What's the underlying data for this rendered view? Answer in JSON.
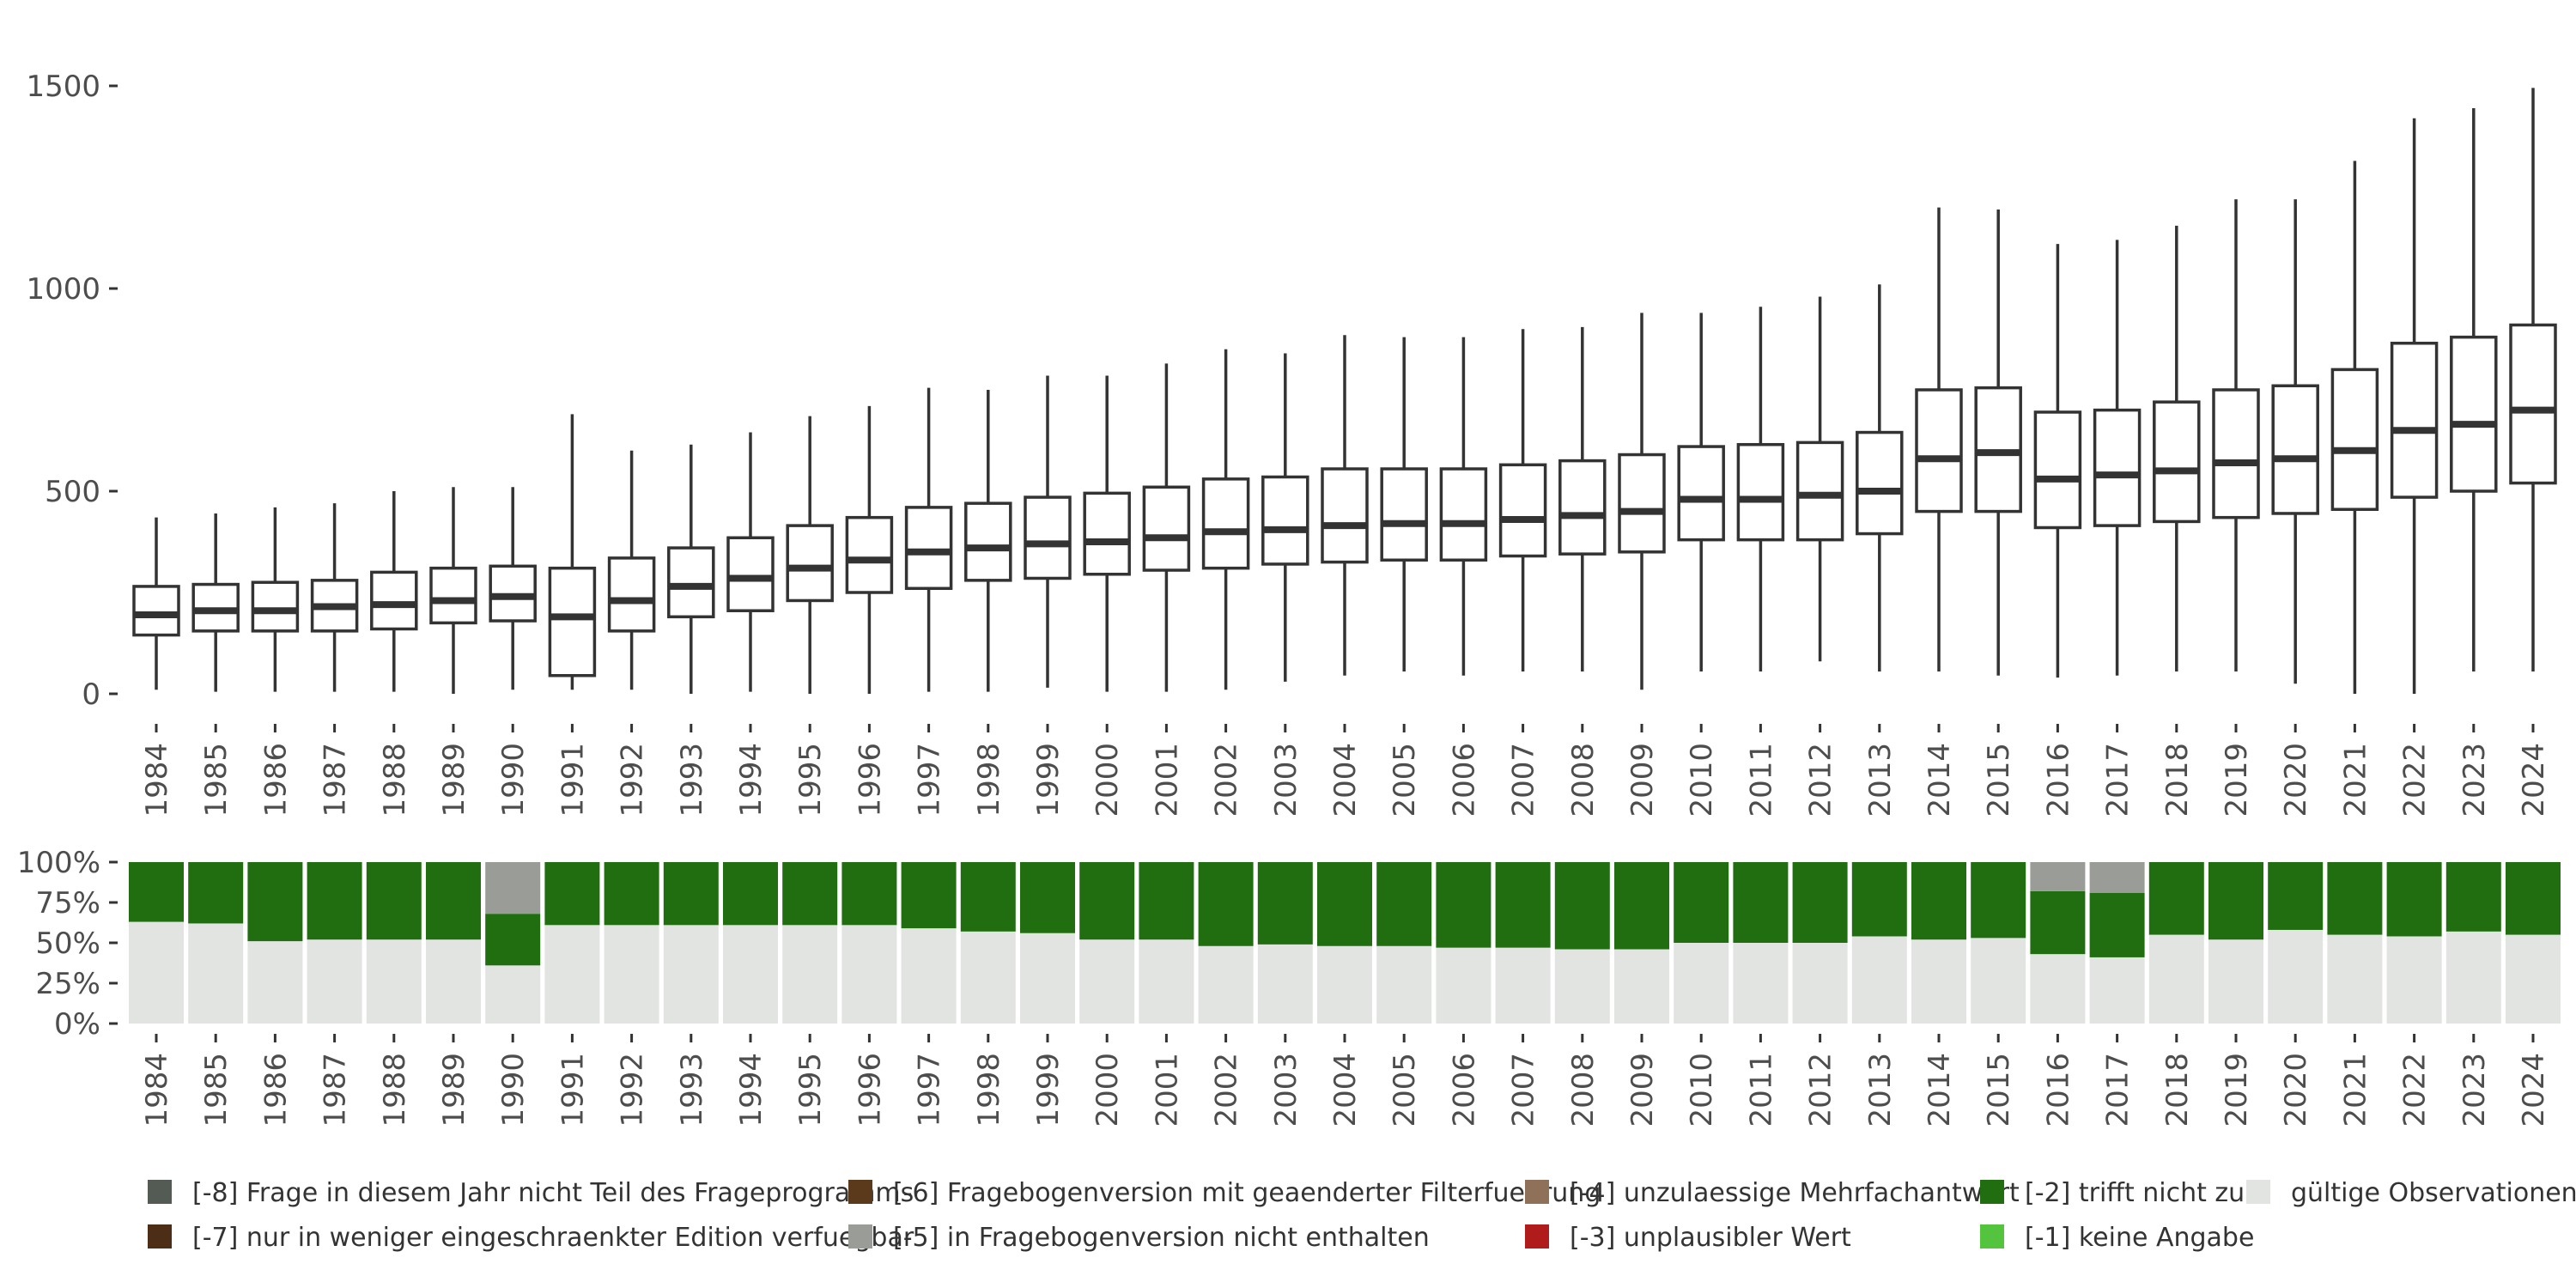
{
  "chart_data": [
    {
      "type": "box",
      "ylim": [
        0,
        1500
      ],
      "y_ticks": [
        "0",
        "500",
        "1000",
        "1500"
      ],
      "categories": [
        "1984",
        "1985",
        "1986",
        "1987",
        "1988",
        "1989",
        "1990",
        "1991",
        "1992",
        "1993",
        "1994",
        "1995",
        "1996",
        "1997",
        "1998",
        "1999",
        "2000",
        "2001",
        "2002",
        "2003",
        "2004",
        "2005",
        "2006",
        "2007",
        "2008",
        "2009",
        "2010",
        "2011",
        "2012",
        "2013",
        "2014",
        "2015",
        "2016",
        "2017",
        "2018",
        "2019",
        "2020",
        "2021",
        "2022",
        "2023",
        "2024"
      ],
      "boxes": [
        {
          "min": 10,
          "q1": 145,
          "median": 195,
          "q3": 265,
          "max": 435
        },
        {
          "min": 5,
          "q1": 155,
          "median": 205,
          "q3": 270,
          "max": 445
        },
        {
          "min": 5,
          "q1": 155,
          "median": 205,
          "q3": 275,
          "max": 460
        },
        {
          "min": 5,
          "q1": 155,
          "median": 215,
          "q3": 280,
          "max": 470
        },
        {
          "min": 5,
          "q1": 160,
          "median": 220,
          "q3": 300,
          "max": 500
        },
        {
          "min": 0,
          "q1": 175,
          "median": 230,
          "q3": 310,
          "max": 510
        },
        {
          "min": 10,
          "q1": 180,
          "median": 240,
          "q3": 315,
          "max": 510
        },
        {
          "min": 10,
          "q1": 45,
          "median": 190,
          "q3": 310,
          "max": 690
        },
        {
          "min": 10,
          "q1": 155,
          "median": 230,
          "q3": 335,
          "max": 600
        },
        {
          "min": 0,
          "q1": 190,
          "median": 265,
          "q3": 360,
          "max": 615
        },
        {
          "min": 5,
          "q1": 205,
          "median": 285,
          "q3": 385,
          "max": 645
        },
        {
          "min": 0,
          "q1": 230,
          "median": 310,
          "q3": 415,
          "max": 685
        },
        {
          "min": 0,
          "q1": 250,
          "median": 330,
          "q3": 435,
          "max": 710
        },
        {
          "min": 5,
          "q1": 260,
          "median": 350,
          "q3": 460,
          "max": 755
        },
        {
          "min": 5,
          "q1": 280,
          "median": 360,
          "q3": 470,
          "max": 750
        },
        {
          "min": 15,
          "q1": 285,
          "median": 370,
          "q3": 485,
          "max": 785
        },
        {
          "min": 5,
          "q1": 295,
          "median": 375,
          "q3": 495,
          "max": 785
        },
        {
          "min": 5,
          "q1": 305,
          "median": 385,
          "q3": 510,
          "max": 815
        },
        {
          "min": 10,
          "q1": 310,
          "median": 400,
          "q3": 530,
          "max": 850
        },
        {
          "min": 30,
          "q1": 320,
          "median": 405,
          "q3": 535,
          "max": 840
        },
        {
          "min": 45,
          "q1": 325,
          "median": 415,
          "q3": 555,
          "max": 885
        },
        {
          "min": 55,
          "q1": 330,
          "median": 420,
          "q3": 555,
          "max": 880
        },
        {
          "min": 45,
          "q1": 330,
          "median": 420,
          "q3": 555,
          "max": 880
        },
        {
          "min": 55,
          "q1": 340,
          "median": 430,
          "q3": 565,
          "max": 900
        },
        {
          "min": 55,
          "q1": 345,
          "median": 440,
          "q3": 575,
          "max": 905
        },
        {
          "min": 10,
          "q1": 350,
          "median": 450,
          "q3": 590,
          "max": 940
        },
        {
          "min": 55,
          "q1": 380,
          "median": 480,
          "q3": 610,
          "max": 940
        },
        {
          "min": 55,
          "q1": 380,
          "median": 480,
          "q3": 615,
          "max": 955
        },
        {
          "min": 80,
          "q1": 380,
          "median": 490,
          "q3": 620,
          "max": 980
        },
        {
          "min": 55,
          "q1": 395,
          "median": 500,
          "q3": 645,
          "max": 1010
        },
        {
          "min": 55,
          "q1": 450,
          "median": 580,
          "q3": 750,
          "max": 1200
        },
        {
          "min": 45,
          "q1": 450,
          "median": 595,
          "q3": 755,
          "max": 1195
        },
        {
          "min": 40,
          "q1": 410,
          "median": 530,
          "q3": 695,
          "max": 1110
        },
        {
          "min": 45,
          "q1": 415,
          "median": 540,
          "q3": 700,
          "max": 1120
        },
        {
          "min": 55,
          "q1": 425,
          "median": 550,
          "q3": 720,
          "max": 1155
        },
        {
          "min": 55,
          "q1": 435,
          "median": 570,
          "q3": 750,
          "max": 1220
        },
        {
          "min": 25,
          "q1": 445,
          "median": 580,
          "q3": 760,
          "max": 1220
        },
        {
          "min": 0,
          "q1": 455,
          "median": 600,
          "q3": 800,
          "max": 1315
        },
        {
          "min": 0,
          "q1": 485,
          "median": 650,
          "q3": 865,
          "max": 1420
        },
        {
          "min": 55,
          "q1": 500,
          "median": 665,
          "q3": 880,
          "max": 1445
        },
        {
          "min": 55,
          "q1": 520,
          "median": 700,
          "q3": 910,
          "max": 1495
        }
      ]
    },
    {
      "type": "bar",
      "stacked": true,
      "ylim": [
        0,
        1
      ],
      "y_ticks": [
        "0%",
        "25%",
        "50%",
        "75%",
        "100%"
      ],
      "categories": [
        "1984",
        "1985",
        "1986",
        "1987",
        "1988",
        "1989",
        "1990",
        "1991",
        "1992",
        "1993",
        "1994",
        "1995",
        "1996",
        "1997",
        "1998",
        "1999",
        "2000",
        "2001",
        "2002",
        "2003",
        "2004",
        "2005",
        "2006",
        "2007",
        "2008",
        "2009",
        "2010",
        "2011",
        "2012",
        "2013",
        "2014",
        "2015",
        "2016",
        "2017",
        "2018",
        "2019",
        "2020",
        "2021",
        "2022",
        "2023",
        "2024"
      ],
      "series": [
        {
          "name": "gültige Observationen",
          "color": "#e1e4e0",
          "values": [
            0.63,
            0.62,
            0.51,
            0.52,
            0.52,
            0.52,
            0.36,
            0.61,
            0.61,
            0.61,
            0.61,
            0.61,
            0.61,
            0.59,
            0.57,
            0.56,
            0.52,
            0.52,
            0.48,
            0.49,
            0.48,
            0.48,
            0.47,
            0.47,
            0.46,
            0.46,
            0.5,
            0.5,
            0.5,
            0.54,
            0.52,
            0.53,
            0.43,
            0.41,
            0.55,
            0.52,
            0.58,
            0.55,
            0.54,
            0.57,
            0.55
          ]
        },
        {
          "name": "[-2] trifft nicht zu",
          "color": "#216e11",
          "values": [
            0.37,
            0.38,
            0.49,
            0.48,
            0.48,
            0.48,
            0.32,
            0.39,
            0.39,
            0.39,
            0.39,
            0.39,
            0.39,
            0.41,
            0.43,
            0.44,
            0.48,
            0.48,
            0.52,
            0.51,
            0.52,
            0.52,
            0.53,
            0.53,
            0.54,
            0.54,
            0.5,
            0.5,
            0.5,
            0.46,
            0.48,
            0.47,
            0.39,
            0.4,
            0.45,
            0.48,
            0.42,
            0.45,
            0.46,
            0.43,
            0.45
          ]
        },
        {
          "name": "[-5] in Fragebogenversion nicht enthalten",
          "color": "#9a9c97",
          "values": [
            0,
            0,
            0,
            0,
            0,
            0,
            0.32,
            0,
            0,
            0,
            0,
            0,
            0,
            0,
            0,
            0,
            0,
            0,
            0,
            0,
            0,
            0,
            0,
            0,
            0,
            0,
            0,
            0,
            0,
            0,
            0,
            0,
            0.18,
            0.19,
            0,
            0,
            0,
            0,
            0,
            0,
            0
          ]
        }
      ],
      "legend": [
        {
          "label": "[-8] Frage in diesem Jahr nicht Teil des Frageprogramms",
          "color": "#545a54"
        },
        {
          "label": "[-6] Fragebogenversion mit geaenderter Filterfuehrung",
          "color": "#5b3a1c"
        },
        {
          "label": "[-4] unzulaessige Mehrfachantwort",
          "color": "#8f7059"
        },
        {
          "label": "[-2] trifft nicht zu",
          "color": "#216e11"
        },
        {
          "label": "gültige Observationen",
          "color": "#e1e4e0"
        },
        {
          "label": "[-7] nur in weniger eingeschraenkter Edition verfuegbar",
          "color": "#4b2e15"
        },
        {
          "label": "[-5] in Fragebogenversion nicht enthalten",
          "color": "#9a9c97"
        },
        {
          "label": "[-3] unplausibler Wert",
          "color": "#b01c1c"
        },
        {
          "label": "[-1] keine Angabe",
          "color": "#54c43e"
        }
      ],
      "legend_placement": "bottom"
    }
  ]
}
